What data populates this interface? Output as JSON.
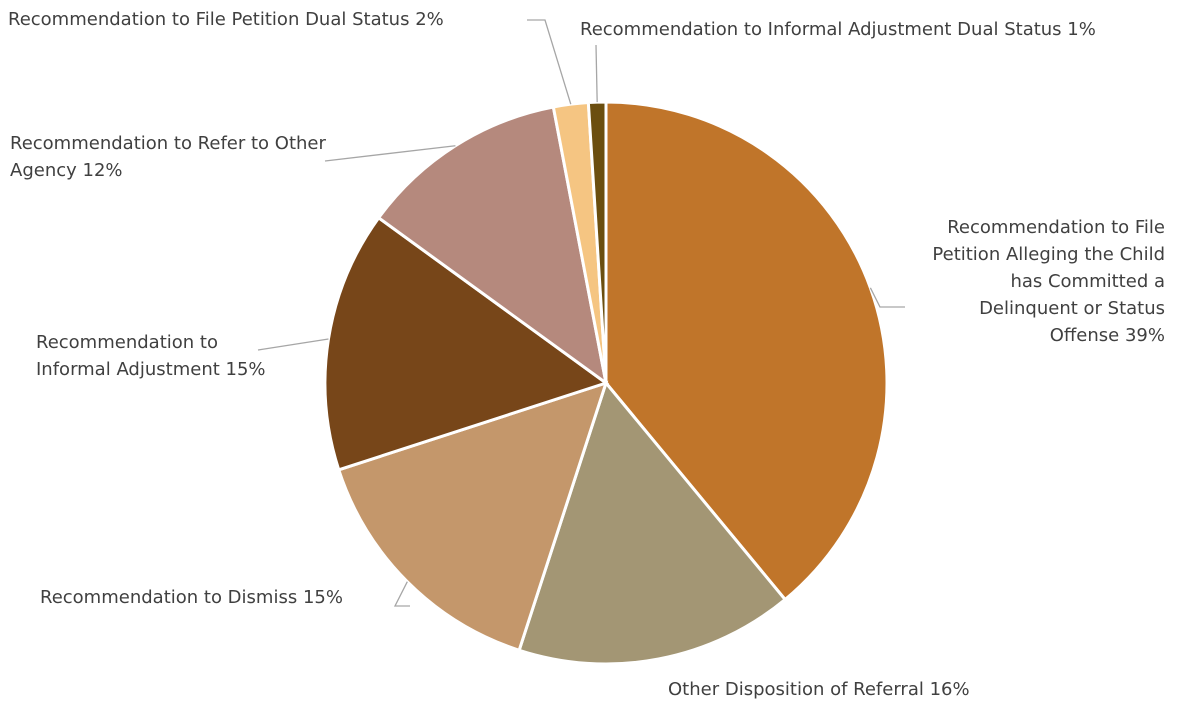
{
  "chart_data": {
    "type": "pie",
    "categories": [
      "Recommendation to File Petition Alleging the Child has Committed a Delinquent or Status Offense",
      "Other Disposition of Referral",
      "Recommendation to Dismiss",
      "Recommendation to Informal Adjustment",
      "Recommendation to Refer to Other Agency",
      "Recommendation to File Petition Dual Status",
      "Recommendation to Informal Adjustment Dual Status"
    ],
    "values": [
      39,
      16,
      15,
      15,
      12,
      2,
      1
    ],
    "value_labels": [
      "39%",
      "16%",
      "15%",
      "15%",
      "12%",
      "2%",
      "1%"
    ],
    "colors": [
      "#c0752a",
      "#a39674",
      "#c4976b",
      "#774619",
      "#b5897d",
      "#f5c582",
      "#6b4e0f"
    ]
  }
}
